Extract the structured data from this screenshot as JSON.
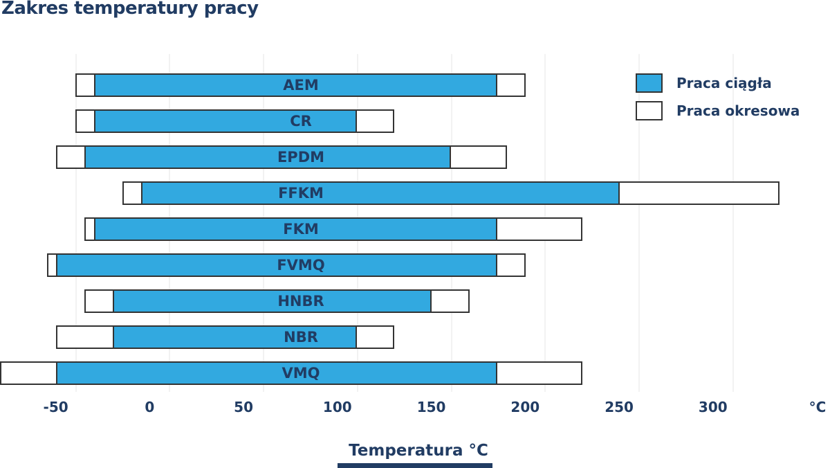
{
  "title": "Zakres temperatury pracy",
  "chart_data": {
    "type": "bar",
    "orientation": "horizontal",
    "title": "Zakres temperatury pracy",
    "xlabel": "Temperatura °C",
    "x_unit": "°C",
    "xlim": [
      -90,
      352
    ],
    "xticks": [
      -50,
      0,
      50,
      100,
      150,
      200,
      250,
      300
    ],
    "grid": "vertical-light",
    "legend_position": "top-right",
    "legend": [
      "Praca ciągła",
      "Praca okresowa"
    ],
    "materials": [
      {
        "name": "AEM",
        "continuous": [
          -40,
          175
        ],
        "periodic": [
          -50,
          190
        ]
      },
      {
        "name": "CR",
        "continuous": [
          -40,
          100
        ],
        "periodic": [
          -50,
          120
        ]
      },
      {
        "name": "EPDM",
        "continuous": [
          -45,
          150
        ],
        "periodic": [
          -60,
          180
        ]
      },
      {
        "name": "FFKM",
        "continuous": [
          -15,
          240
        ],
        "periodic": [
          -25,
          325
        ]
      },
      {
        "name": "FKM",
        "continuous": [
          -40,
          175
        ],
        "periodic": [
          -45,
          220
        ]
      },
      {
        "name": "FVMQ",
        "continuous": [
          -60,
          175
        ],
        "periodic": [
          -65,
          190
        ]
      },
      {
        "name": "HNBR",
        "continuous": [
          -30,
          140
        ],
        "periodic": [
          -45,
          160
        ]
      },
      {
        "name": "NBR",
        "continuous": [
          -30,
          100
        ],
        "periodic": [
          -60,
          120
        ]
      },
      {
        "name": "VMQ",
        "continuous": [
          -60,
          175
        ],
        "periodic": [
          -90,
          220
        ]
      }
    ]
  },
  "colors": {
    "navy": "#213C63",
    "bar_blue": "#32A9E0",
    "bar_border": "#333333",
    "gridline": "#F2F2F2"
  }
}
